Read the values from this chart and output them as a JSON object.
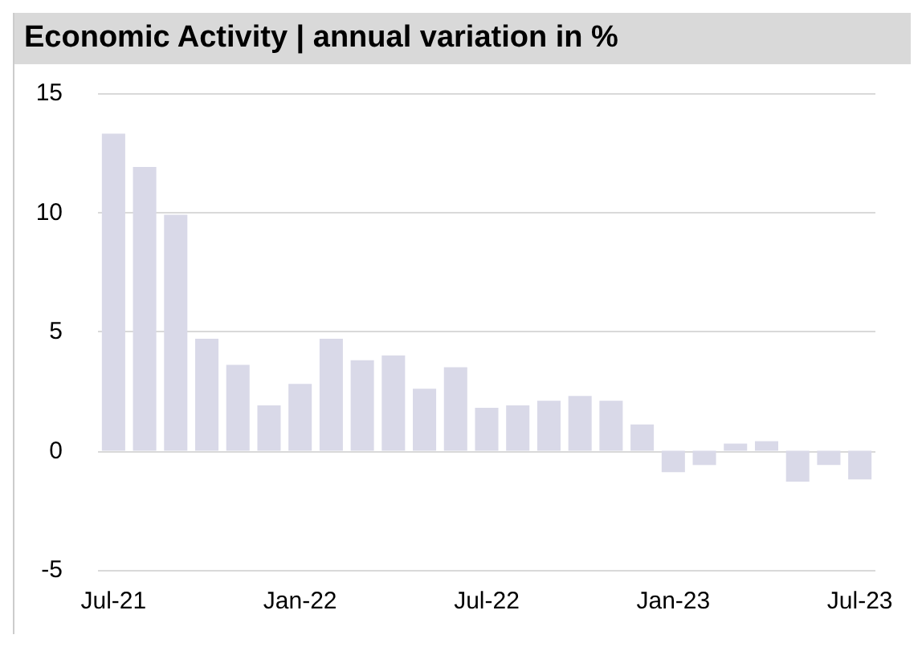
{
  "chart_data": {
    "type": "bar",
    "title": "Economic Activity | annual variation in %",
    "categories": [
      "Jul-21",
      null,
      null,
      null,
      null,
      null,
      "Jan-22",
      null,
      null,
      null,
      null,
      null,
      "Jul-22",
      null,
      null,
      null,
      null,
      null,
      "Jan-23",
      null,
      null,
      null,
      null,
      null,
      "Jul-23"
    ],
    "values": [
      13.3,
      11.9,
      9.9,
      4.7,
      3.6,
      1.9,
      2.8,
      4.7,
      3.8,
      4.0,
      2.6,
      3.5,
      1.8,
      1.9,
      2.1,
      2.3,
      2.1,
      1.1,
      -0.9,
      -0.6,
      0.3,
      0.4,
      -1.3,
      -0.6,
      -1.2
    ],
    "color": "#d9d9e8",
    "ylim": [
      -5,
      15
    ],
    "yticks": [
      -5,
      0,
      5,
      10,
      15
    ],
    "grid": "y"
  }
}
